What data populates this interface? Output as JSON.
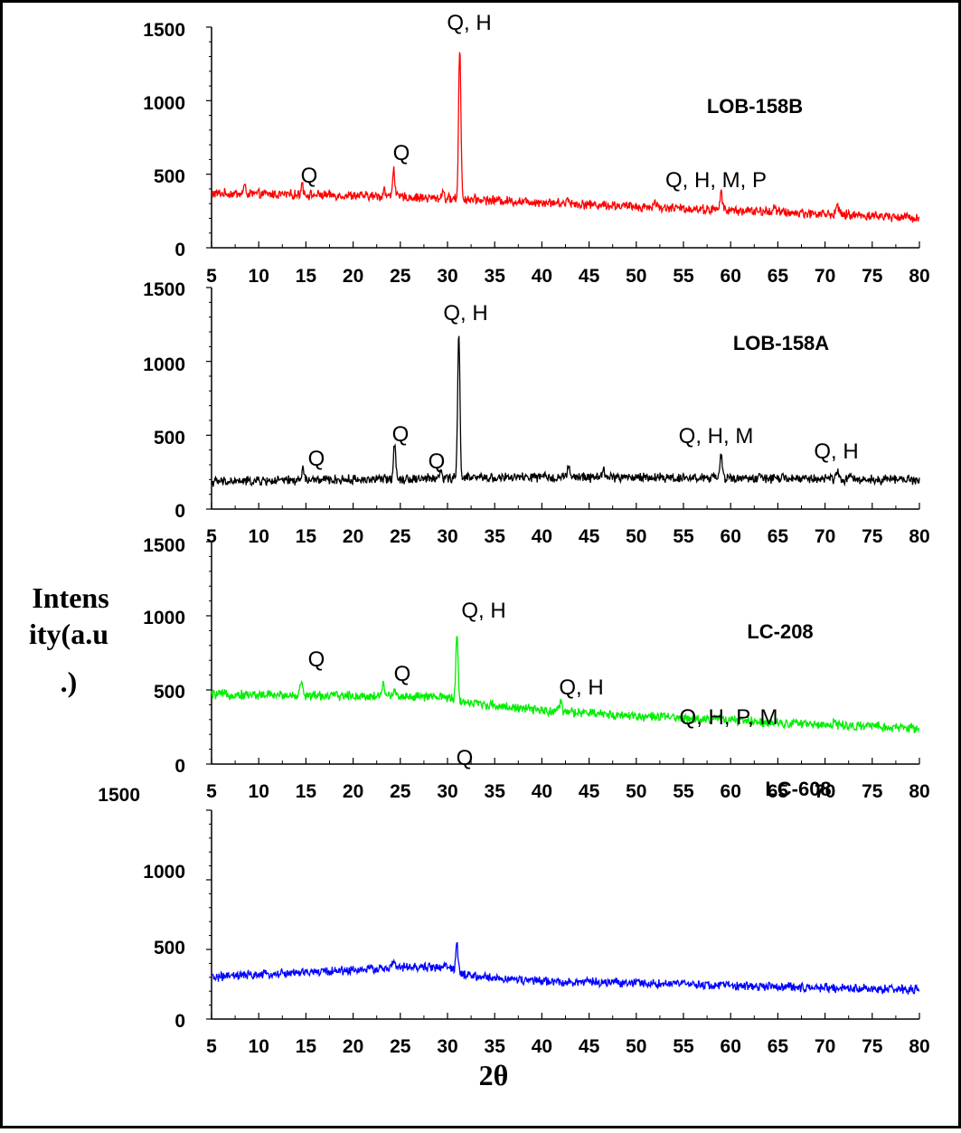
{
  "chart_data": [
    {
      "type": "line",
      "title": "LOB-158B",
      "color": "#ff0000",
      "xlim": [
        5,
        80
      ],
      "ylim": [
        0,
        1500
      ],
      "xticks": [
        "5",
        "10",
        "15",
        "20",
        "25",
        "30",
        "35",
        "40",
        "45",
        "50",
        "55",
        "60",
        "65",
        "70",
        "75",
        "80"
      ],
      "yticks": [
        "0",
        "500",
        "1000",
        "1500"
      ],
      "baseline": {
        "x": [
          5,
          20,
          30,
          40,
          50,
          60,
          70,
          80
        ],
        "y": [
          370,
          355,
          335,
          310,
          280,
          255,
          230,
          205
        ]
      },
      "peaks": [
        {
          "x": 8.5,
          "y": 420
        },
        {
          "x": 14.6,
          "y": 440
        },
        {
          "x": 23.3,
          "y": 400
        },
        {
          "x": 24.3,
          "y": 545
        },
        {
          "x": 29.5,
          "y": 390
        },
        {
          "x": 31.3,
          "y": 1370
        },
        {
          "x": 42.8,
          "y": 340
        },
        {
          "x": 52.0,
          "y": 320
        },
        {
          "x": 59.0,
          "y": 380
        },
        {
          "x": 64.6,
          "y": 290
        },
        {
          "x": 71.3,
          "y": 300
        }
      ],
      "annotations": [
        {
          "text": "Q, H",
          "x": 31.3
        },
        {
          "text": "Q",
          "x": 15.0
        },
        {
          "text": "Q",
          "x": 25.1
        },
        {
          "text": "Q, H, M, P",
          "x": 58.5
        }
      ]
    },
    {
      "type": "line",
      "title": "LOB-158A",
      "color": "#000000",
      "xlim": [
        5,
        80
      ],
      "ylim": [
        0,
        1500
      ],
      "xticks": [
        "5",
        "10",
        "15",
        "20",
        "25",
        "30",
        "35",
        "40",
        "45",
        "50",
        "55",
        "60",
        "65",
        "70",
        "75",
        "80"
      ],
      "yticks": [
        "0",
        "500",
        "1000",
        "1500"
      ],
      "baseline": {
        "x": [
          5,
          20,
          30,
          40,
          50,
          60,
          70,
          80
        ],
        "y": [
          185,
          200,
          210,
          215,
          215,
          210,
          205,
          200
        ]
      },
      "peaks": [
        {
          "x": 14.7,
          "y": 275
        },
        {
          "x": 24.4,
          "y": 455
        },
        {
          "x": 29.3,
          "y": 260
        },
        {
          "x": 31.2,
          "y": 1190
        },
        {
          "x": 42.8,
          "y": 290
        },
        {
          "x": 46.5,
          "y": 280
        },
        {
          "x": 59.0,
          "y": 365
        },
        {
          "x": 71.3,
          "y": 265
        }
      ],
      "annotations": [
        {
          "text": "Q, H",
          "x": 31.5
        },
        {
          "text": "Q",
          "x": 16.0
        },
        {
          "text": "Q",
          "x": 24.9
        },
        {
          "text": "Q",
          "x": 28.5
        },
        {
          "text": "Q, H, M",
          "x": 59.1
        },
        {
          "text": "Q, H",
          "x": 72.5
        }
      ]
    },
    {
      "type": "line",
      "title": "LC-208",
      "color": "#00ee00",
      "xlim": [
        5,
        80
      ],
      "ylim": [
        0,
        1500
      ],
      "xticks": [
        "5",
        "10",
        "15",
        "20",
        "25",
        "30",
        "35",
        "40",
        "45",
        "50",
        "55",
        "60",
        "65",
        "70",
        "75",
        "80"
      ],
      "yticks": [
        "0",
        "500",
        "1000",
        "1500"
      ],
      "baseline": {
        "x": [
          5,
          20,
          30,
          31.5,
          40,
          50,
          60,
          70,
          80
        ],
        "y": [
          470,
          460,
          450,
          420,
          360,
          325,
          295,
          265,
          240
        ]
      },
      "peaks": [
        {
          "x": 14.5,
          "y": 560
        },
        {
          "x": 23.2,
          "y": 560
        },
        {
          "x": 24.4,
          "y": 520
        },
        {
          "x": 31.0,
          "y": 890
        },
        {
          "x": 42.0,
          "y": 420
        },
        {
          "x": 59.0,
          "y": 330
        },
        {
          "x": 71.0,
          "y": 290
        }
      ],
      "annotations": [
        {
          "text": "Q, H",
          "x": 32.6
        },
        {
          "text": "Q",
          "x": 16.1
        },
        {
          "text": "Q",
          "x": 25.0
        },
        {
          "text": "Q, H",
          "x": 44.9
        }
      ]
    },
    {
      "type": "line",
      "title": "LC-608",
      "color": "#0000ff",
      "xlim": [
        5,
        80
      ],
      "ylim": [
        0,
        1500
      ],
      "xticks": [
        "5",
        "10",
        "15",
        "20",
        "25",
        "30",
        "35",
        "40",
        "45",
        "50",
        "55",
        "60",
        "65",
        "70",
        "75",
        "80"
      ],
      "yticks": [
        "0",
        "500",
        "1000",
        "1500"
      ],
      "baseline": {
        "x": [
          5,
          15,
          25,
          30,
          32,
          40,
          50,
          60,
          70,
          80
        ],
        "y": [
          300,
          335,
          370,
          375,
          310,
          270,
          260,
          240,
          225,
          210
        ]
      },
      "peaks": [
        {
          "x": 24.3,
          "y": 420
        },
        {
          "x": 31.0,
          "y": 535
        },
        {
          "x": 59.0,
          "y": 260
        }
      ],
      "annotations": [
        {
          "text": "Q",
          "x": 31.1
        },
        {
          "text": "Q, H, P, M",
          "x": 58.0
        }
      ]
    }
  ],
  "axes": {
    "ylabel_lines": [
      "Intens",
      "ity(a.u",
      ".)"
    ],
    "xlabel": "2θ"
  }
}
